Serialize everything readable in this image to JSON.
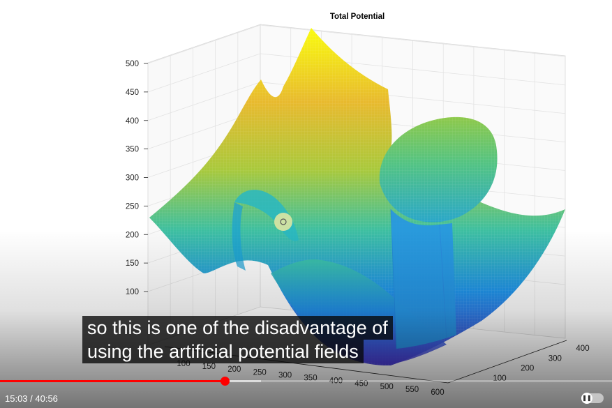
{
  "chart_data": {
    "type": "surface",
    "title": "Total Potential",
    "z_axis": {
      "ticks": [
        500,
        450,
        400,
        350,
        300,
        250,
        200,
        150,
        100
      ],
      "range": [
        50,
        500
      ]
    },
    "x_axis": {
      "ticks": [
        100,
        150,
        200,
        250,
        300,
        350,
        400,
        450,
        500,
        550,
        600
      ],
      "range": [
        100,
        600
      ]
    },
    "y_axis": {
      "ticks": [
        100,
        200,
        300,
        400
      ],
      "range": [
        0,
        400
      ]
    },
    "grid": true,
    "colormap": [
      "#3e26a8",
      "#1f8ef1",
      "#2db8bb",
      "#a8c83a",
      "#f9fb0e"
    ]
  },
  "player": {
    "caption_lines": [
      "so this is one of the disadvantage of",
      "using the artificial potential fields"
    ],
    "current_time": "15:03",
    "duration": "40:56",
    "time_display": "15:03 / 40:56",
    "progress_fraction": 0.367,
    "autoplay_icon": "pause-icon"
  }
}
